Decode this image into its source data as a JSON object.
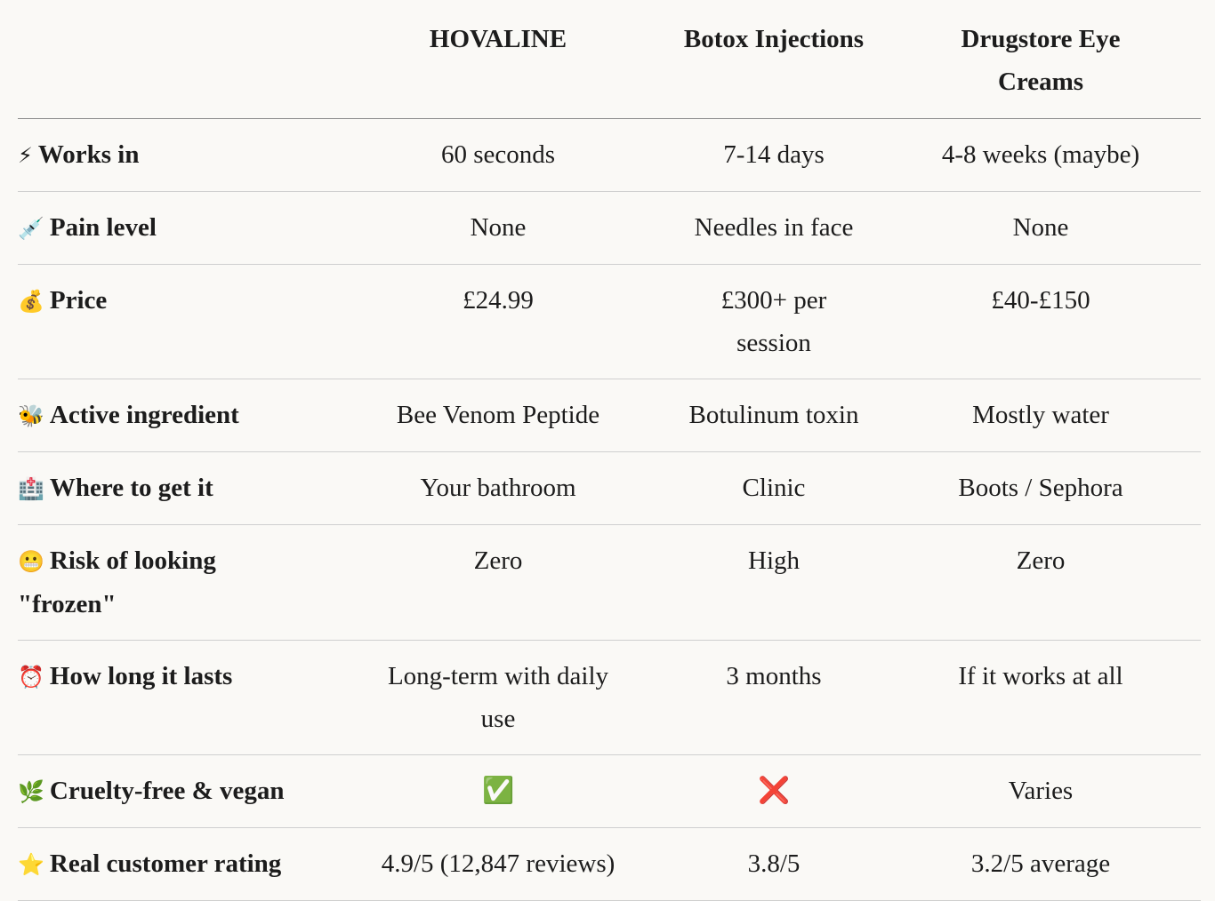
{
  "table": {
    "columns": [
      "HOVALINE",
      "Botox Injections",
      "Drugstore Eye Creams"
    ],
    "rows": [
      {
        "icon": "⚡",
        "label": "Works in",
        "cells": [
          "60 seconds",
          "7-14 days",
          "4-8 weeks (maybe)"
        ]
      },
      {
        "icon": "💉",
        "label": "Pain level",
        "cells": [
          "None",
          "Needles in face",
          "None"
        ]
      },
      {
        "icon": "💰",
        "label": "Price",
        "cells": [
          "£24.99",
          "£300+ per session",
          "£40-£150"
        ]
      },
      {
        "icon": "🐝",
        "label": "Active ingredient",
        "cells": [
          "Bee Venom Peptide",
          "Botulinum toxin",
          "Mostly water"
        ]
      },
      {
        "icon": "🏥",
        "label": "Where to get it",
        "cells": [
          "Your bathroom",
          "Clinic",
          "Boots / Sephora"
        ]
      },
      {
        "icon": "😬",
        "label": "Risk of looking \"frozen\"",
        "cells": [
          "Zero",
          "High",
          "Zero"
        ]
      },
      {
        "icon": "⏰",
        "label": "How long it lasts",
        "cells": [
          "Long-term with daily use",
          "3 months",
          "If it works at all"
        ]
      },
      {
        "icon": "🌿",
        "label": "Cruelty-free & vegan",
        "cells": [
          "✅",
          "❌",
          "Varies"
        ]
      },
      {
        "icon": "⭐",
        "label": "Real customer rating",
        "cells": [
          "4.9/5 (12,847 reviews)",
          "3.8/5",
          "3.2/5 average"
        ]
      }
    ]
  }
}
